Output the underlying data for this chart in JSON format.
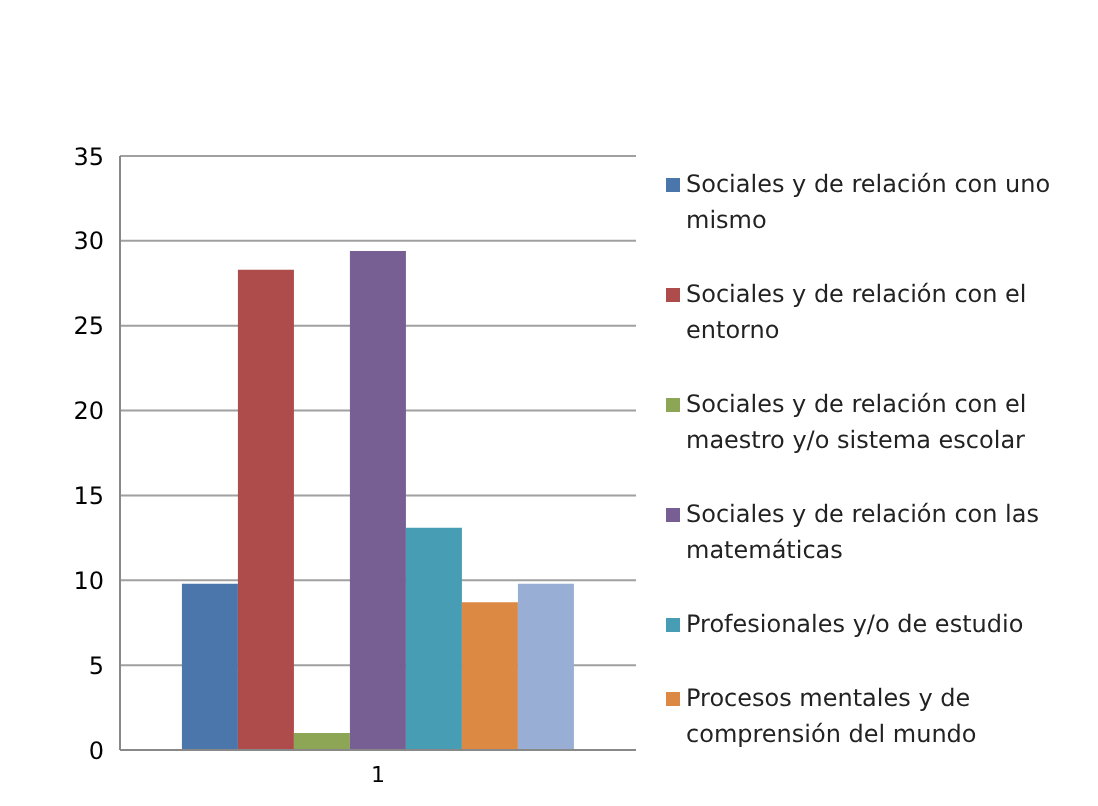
{
  "chart_data": {
    "type": "bar",
    "categories": [
      "1"
    ],
    "series": [
      {
        "name": "Sociales y de relación con uno mismo",
        "color": "#4a76ab",
        "values": [
          9.8
        ]
      },
      {
        "name": "Sociales y de relación con el entorno",
        "color": "#ad4c4a",
        "values": [
          28.3
        ]
      },
      {
        "name": "Sociales y de relación con el maestro y/o sistema escolar",
        "color": "#8ca655",
        "values": [
          1.0
        ]
      },
      {
        "name": "Sociales y de relación con las matemáticas",
        "color": "#775e93",
        "values": [
          29.4
        ]
      },
      {
        "name": "Profesionales y/o de estudio",
        "color": "#479eb4",
        "values": [
          13.1
        ]
      },
      {
        "name": "Procesos mentales y de comprensión del mundo",
        "color": "#dc8944",
        "values": [
          8.7
        ]
      },
      {
        "color": "#98aed5",
        "values": [
          9.8
        ]
      }
    ],
    "ylim": [
      0,
      35
    ],
    "yticks": [
      0,
      5,
      10,
      15,
      20,
      25,
      30,
      35
    ],
    "grid": "y",
    "legend": "right"
  }
}
